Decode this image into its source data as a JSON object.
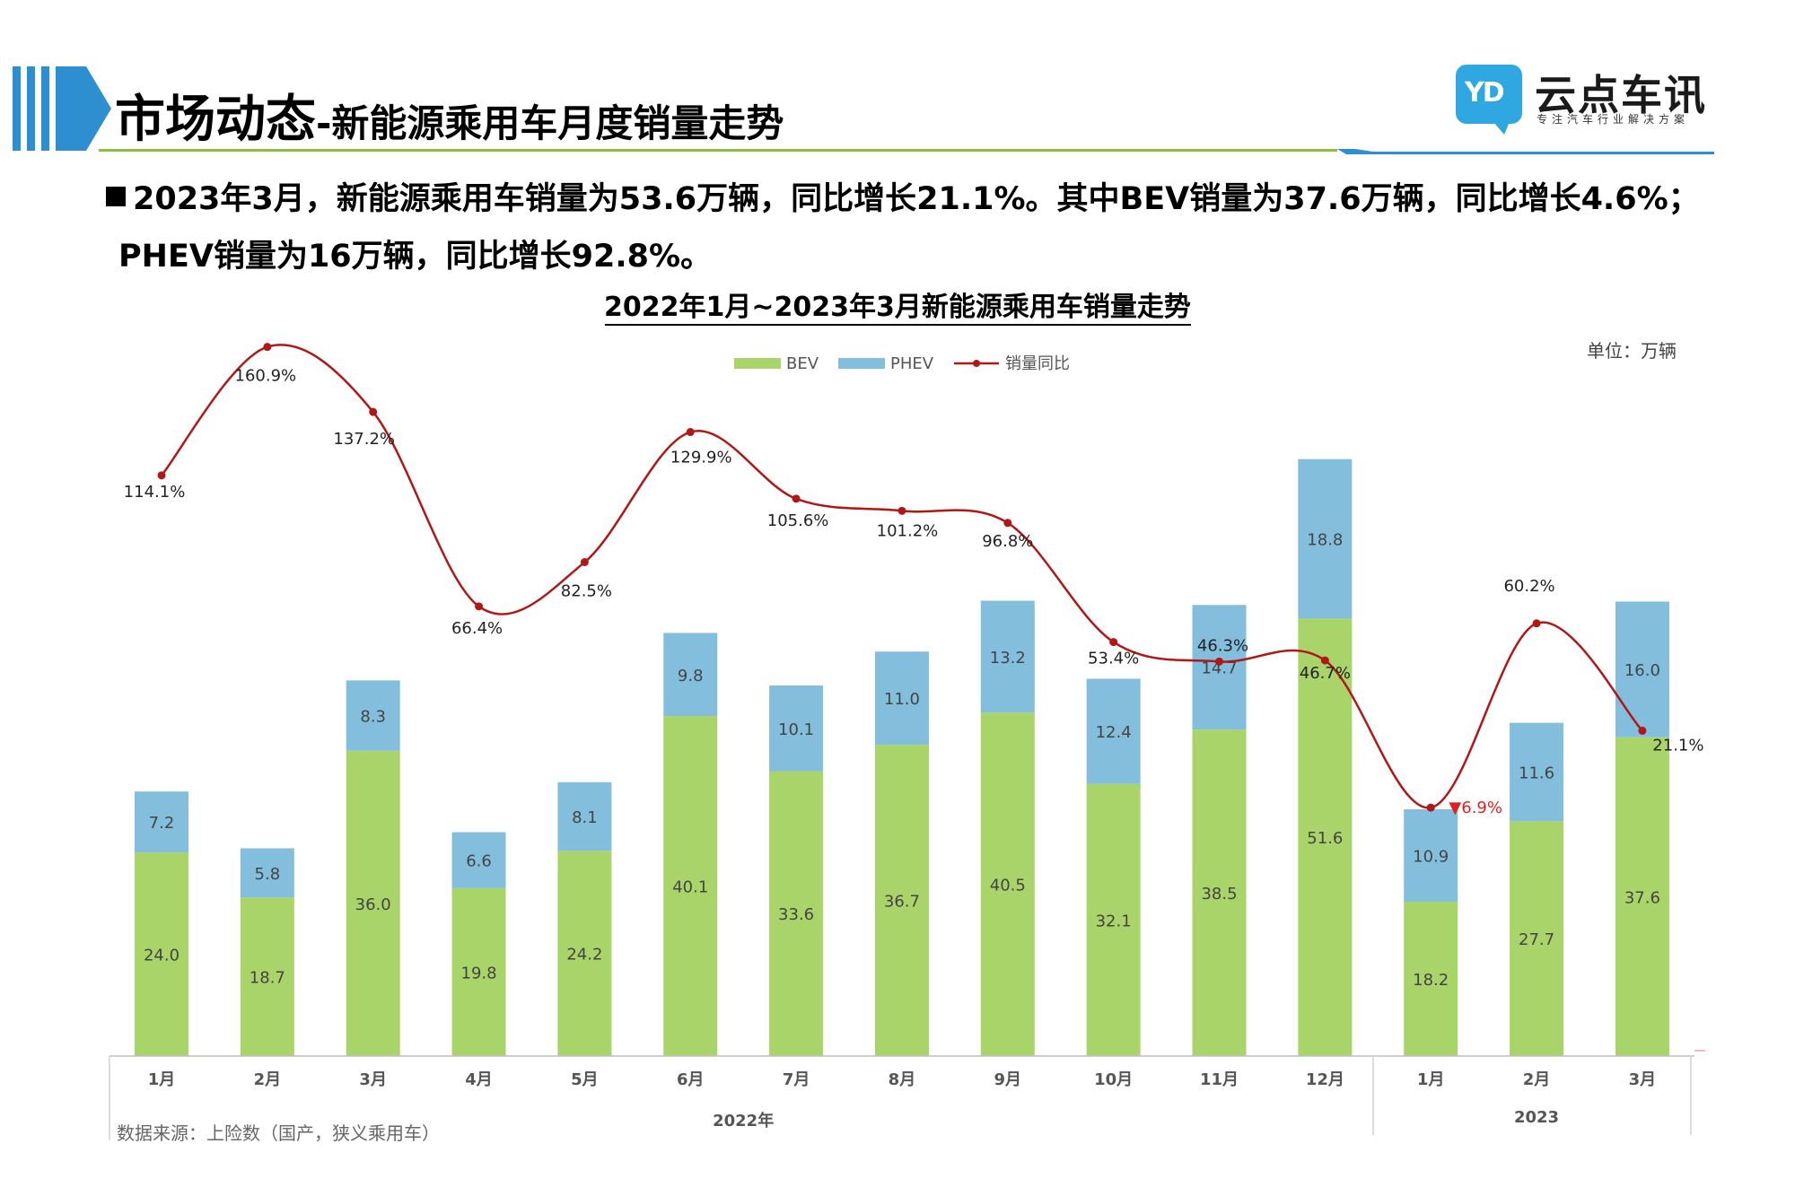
{
  "header": {
    "title_main": "市场动态",
    "title_sub": "-新能源乘用车月度销量走势",
    "brand_name": "云点车讯",
    "brand_tagline": "专注汽车行业解决方案",
    "brand_mark": "YD"
  },
  "summary": {
    "line1": "2023年3月，新能源乘用车销量为53.6万辆，同比增长21.1%。其中BEV销量为37.6万辆，同比增长4.6%；",
    "line2": "PHEV销量为16万辆，同比增长92.8%。"
  },
  "colors": {
    "accent_blue": "#2E8FD0",
    "accent_green": "#8DBE3F",
    "bev": "#A9D46A",
    "phev": "#83BEDD",
    "yoy_line": "#B01818",
    "negative": "#E01F1F"
  },
  "chart_data": {
    "type": "bar",
    "stacked": true,
    "title": "2022年1月~2023年3月新能源乘用车销量走势",
    "unit": "单位：万辆",
    "source": "数据来源：上险数（国产，狭义乘用车）",
    "categories": [
      "1月",
      "2月",
      "3月",
      "4月",
      "5月",
      "6月",
      "7月",
      "8月",
      "9月",
      "10月",
      "11月",
      "12月",
      "1月",
      "2月",
      "3月"
    ],
    "groups": [
      {
        "label": "2022年",
        "count": 12
      },
      {
        "label": "2023",
        "count": 3
      }
    ],
    "series": [
      {
        "name": "BEV",
        "type": "bar",
        "values": [
          24.0,
          18.7,
          36.0,
          19.8,
          24.2,
          40.1,
          33.6,
          36.7,
          40.5,
          32.1,
          38.5,
          51.6,
          18.2,
          27.7,
          37.6
        ],
        "labels": [
          "24.0",
          "18.7",
          "36.0",
          "19.8",
          "24.2",
          "40.1",
          "33.6",
          "36.7",
          "40.5",
          "32.1",
          "38.5",
          "51.6",
          "18.2",
          "27.7",
          "37.6"
        ]
      },
      {
        "name": "PHEV",
        "type": "bar",
        "values": [
          7.2,
          5.8,
          8.3,
          6.6,
          8.1,
          9.8,
          10.1,
          11.0,
          13.2,
          12.4,
          14.7,
          18.8,
          10.9,
          11.6,
          16.0
        ],
        "labels": [
          "7.2",
          "5.8",
          "8.3",
          "6.6",
          "8.1",
          "9.8",
          "10.1",
          "11.0",
          "13.2",
          "12.4",
          "14.7",
          "18.8",
          "10.9",
          "11.6",
          "16.0"
        ]
      },
      {
        "name": "销量同比",
        "type": "line",
        "unit": "%",
        "values": [
          114.1,
          160.9,
          137.2,
          66.4,
          82.5,
          129.9,
          105.6,
          101.2,
          96.8,
          53.4,
          46.3,
          46.7,
          -6.9,
          60.2,
          21.1
        ],
        "labels": [
          "114.1%",
          "160.9%",
          "137.2%",
          "66.4%",
          "82.5%",
          "129.9%",
          "105.6%",
          "101.2%",
          "96.8%",
          "53.4%",
          "46.3%",
          "46.7%",
          "▼6.9%",
          "60.2%",
          "21.1%"
        ]
      }
    ],
    "legend_position": "top-center",
    "grid": false
  }
}
